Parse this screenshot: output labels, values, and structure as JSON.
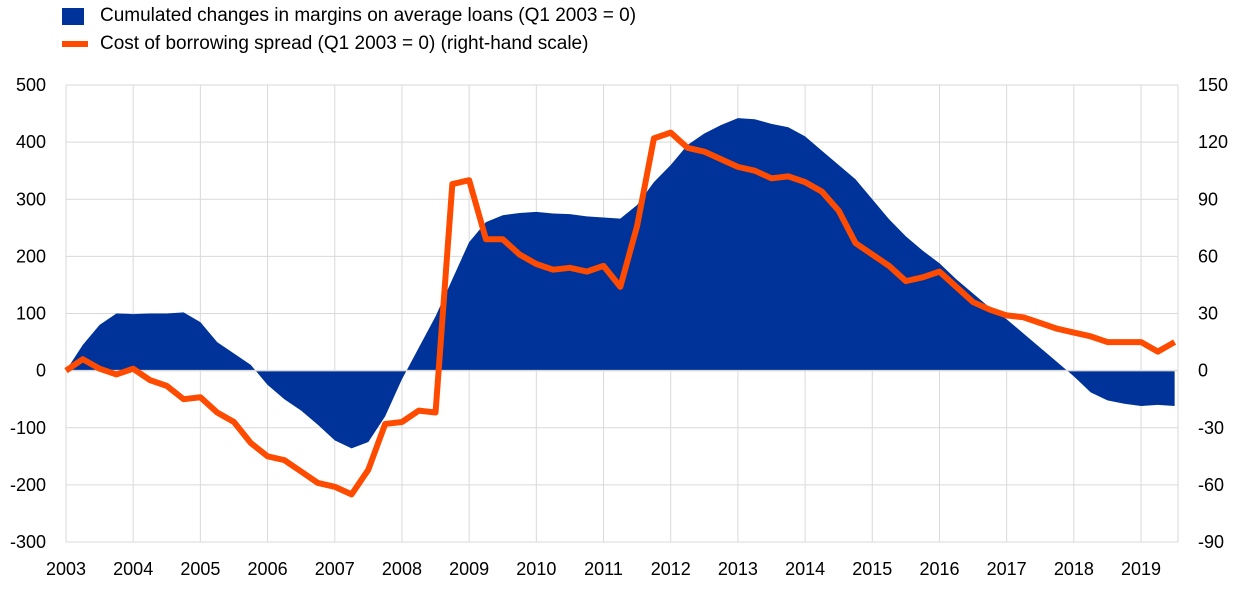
{
  "chart_data": {
    "type": "area+line",
    "title": "",
    "xlabel": "",
    "ylabel": "",
    "legend_position": "top-left",
    "grid": true,
    "colors": {
      "area": "#003399",
      "line": "#FF4B00",
      "grid": "#d9d9d9"
    },
    "x_range": [
      2003.0,
      2019.55
    ],
    "y_left_range": [
      -300,
      500
    ],
    "y_right_range": [
      -90,
      150
    ],
    "x_ticks": [
      "2003",
      "2004",
      "2005",
      "2006",
      "2007",
      "2008",
      "2009",
      "2010",
      "2011",
      "2012",
      "2013",
      "2014",
      "2015",
      "2016",
      "2017",
      "2018",
      "2019"
    ],
    "y_left_ticks": [
      "500",
      "400",
      "300",
      "200",
      "100",
      "0",
      "-100",
      "-200",
      "-300"
    ],
    "y_right_ticks": [
      "150",
      "120",
      "90",
      "60",
      "30",
      "0",
      "-30",
      "-60",
      "-90"
    ],
    "series": [
      {
        "name": "Cumulated changes in margins on average loans (Q1 2003 = 0)",
        "kind": "area",
        "axis": "left",
        "x": [
          2003.0,
          2003.25,
          2003.5,
          2003.75,
          2004.0,
          2004.25,
          2004.5,
          2004.75,
          2005.0,
          2005.25,
          2005.5,
          2005.75,
          2006.0,
          2006.25,
          2006.5,
          2006.75,
          2007.0,
          2007.25,
          2007.5,
          2007.75,
          2008.0,
          2008.25,
          2008.5,
          2008.75,
          2009.0,
          2009.25,
          2009.5,
          2009.75,
          2010.0,
          2010.25,
          2010.5,
          2010.75,
          2011.0,
          2011.25,
          2011.5,
          2011.75,
          2012.0,
          2012.25,
          2012.5,
          2012.75,
          2013.0,
          2013.25,
          2013.5,
          2013.75,
          2014.0,
          2014.25,
          2014.5,
          2014.75,
          2015.0,
          2015.25,
          2015.5,
          2015.75,
          2016.0,
          2016.25,
          2016.5,
          2016.75,
          2017.0,
          2017.25,
          2017.5,
          2017.75,
          2018.0,
          2018.25,
          2018.5,
          2018.75,
          2019.0,
          2019.25,
          2019.5
        ],
        "values": [
          0,
          45,
          80,
          100,
          99,
          100,
          100,
          102,
          85,
          50,
          30,
          10,
          -25,
          -50,
          -70,
          -95,
          -122,
          -136,
          -125,
          -80,
          -15,
          40,
          95,
          160,
          225,
          260,
          272,
          276,
          278,
          275,
          274,
          270,
          268,
          266,
          290,
          330,
          360,
          395,
          415,
          430,
          442,
          440,
          432,
          426,
          410,
          385,
          360,
          335,
          300,
          265,
          235,
          210,
          188,
          160,
          135,
          110,
          90,
          65,
          40,
          15,
          -10,
          -38,
          -52,
          -58,
          -62,
          -60,
          -62
        ]
      },
      {
        "name": "Cost of borrowing spread (Q1 2003 = 0) (right-hand scale)",
        "kind": "line",
        "axis": "right",
        "x": [
          2003.0,
          2003.25,
          2003.5,
          2003.75,
          2004.0,
          2004.25,
          2004.5,
          2004.75,
          2005.0,
          2005.25,
          2005.5,
          2005.75,
          2006.0,
          2006.25,
          2006.5,
          2006.75,
          2007.0,
          2007.25,
          2007.5,
          2007.75,
          2008.0,
          2008.25,
          2008.5,
          2008.75,
          2009.0,
          2009.25,
          2009.5,
          2009.75,
          2010.0,
          2010.25,
          2010.5,
          2010.75,
          2011.0,
          2011.25,
          2011.5,
          2011.75,
          2012.0,
          2012.25,
          2012.5,
          2012.75,
          2013.0,
          2013.25,
          2013.5,
          2013.75,
          2014.0,
          2014.25,
          2014.5,
          2014.75,
          2015.0,
          2015.25,
          2015.5,
          2015.75,
          2016.0,
          2016.25,
          2016.5,
          2016.75,
          2017.0,
          2017.25,
          2017.5,
          2017.75,
          2018.0,
          2018.25,
          2018.5,
          2018.75,
          2019.0,
          2019.25,
          2019.5
        ],
        "values": [
          0,
          6,
          1,
          -2,
          1,
          -5,
          -8,
          -15,
          -14,
          -22,
          -27,
          -38,
          -45,
          -47,
          -53,
          -59,
          -61,
          -65,
          -52,
          -28,
          -27,
          -21,
          -22,
          98,
          100,
          69,
          69,
          61,
          56,
          53,
          54,
          52,
          55,
          44,
          76,
          122,
          125,
          117,
          115,
          111,
          107,
          105,
          101,
          102,
          99,
          94,
          84,
          67,
          61,
          55,
          47,
          49,
          52,
          44,
          36,
          32,
          29,
          28,
          25,
          22,
          20,
          18,
          15,
          15,
          15,
          10,
          15
        ]
      }
    ]
  }
}
